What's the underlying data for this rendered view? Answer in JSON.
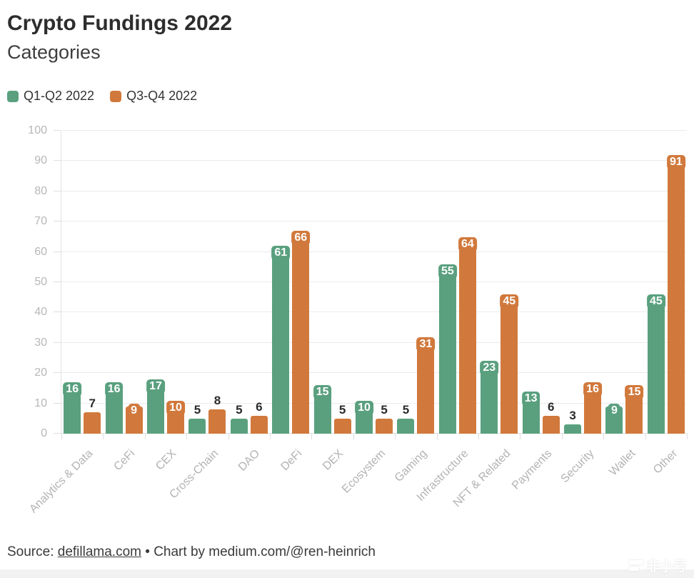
{
  "header": {
    "title": "Crypto Fundings 2022",
    "subtitle": "Categories"
  },
  "legend": {
    "items": [
      {
        "label": "Q1-Q2 2022",
        "color": "#5aa07f"
      },
      {
        "label": "Q3-Q4 2022",
        "color": "#d1793c"
      }
    ]
  },
  "chart_data": {
    "type": "bar",
    "title": "Crypto Fundings 2022",
    "subtitle": "Categories",
    "categories": [
      "Analytics & Data",
      "CeFi",
      "CEX",
      "Cross-Chain",
      "DAO",
      "DeFi",
      "DEX",
      "Ecosystem",
      "Gaming",
      "Infrastructure",
      "NFT & Related",
      "Payments",
      "Security",
      "Wallet",
      "Other"
    ],
    "series": [
      {
        "name": "Q1-Q2 2022",
        "color": "#5aa07f",
        "values": [
          16,
          16,
          17,
          5,
          5,
          61,
          15,
          10,
          5,
          55,
          23,
          13,
          3,
          9,
          45
        ]
      },
      {
        "name": "Q3-Q4 2022",
        "color": "#d1793c",
        "values": [
          7,
          9,
          10,
          8,
          6,
          66,
          5,
          5,
          31,
          64,
          45,
          6,
          16,
          15,
          91
        ]
      }
    ],
    "ylabel": "",
    "xlabel": "",
    "ylim": [
      0,
      100
    ],
    "ytick_step": 10,
    "grid": true,
    "legend_position": "top-left",
    "label_inside_min": 9
  },
  "footer": {
    "source_prefix": "Source: ",
    "source_link": "defillama.com",
    "separator": " • ",
    "credit": "Chart by medium.com/@ren-heinrich"
  },
  "watermark": {
    "text": "非小号"
  },
  "colors": {
    "q1q2_green": "#5aa07f",
    "q3q4_orange": "#d1793c",
    "gridline": "#ebebeb",
    "axis": "#dedede",
    "tick_label": "#b7b7b7",
    "title": "#2d2d2d",
    "subtitle": "#3e3e3e",
    "value_label_dark": "#2b2b2b",
    "footer_text": "#3a3a3a",
    "strip_bg": "#f2f2f2"
  }
}
